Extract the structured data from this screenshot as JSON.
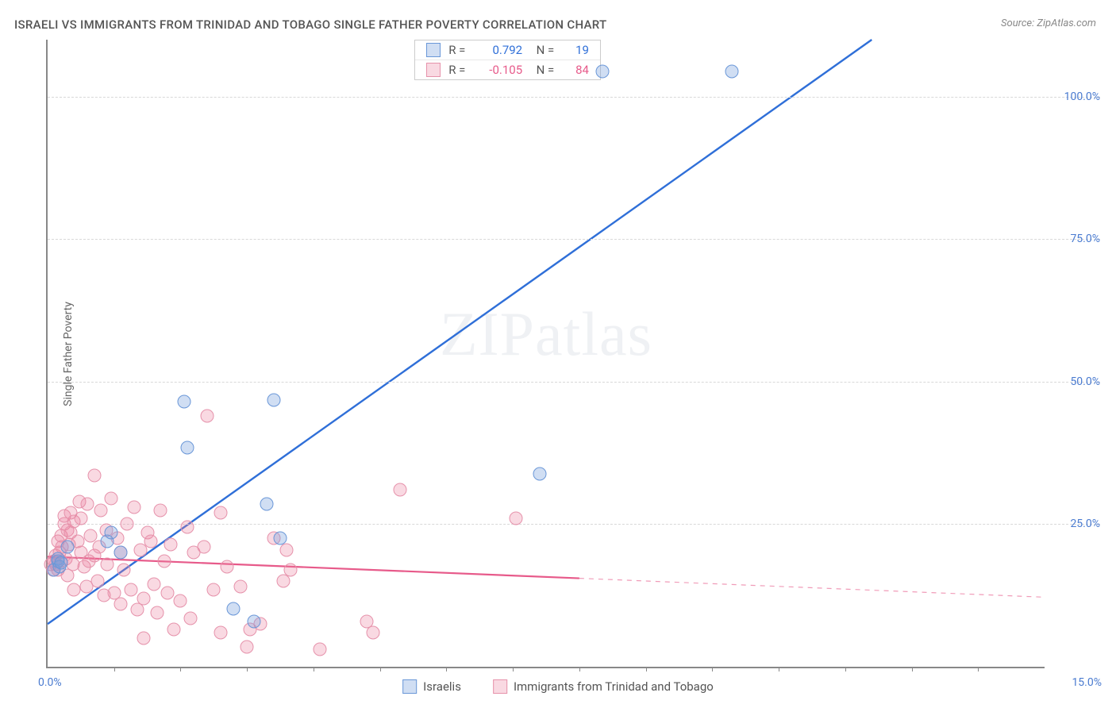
{
  "title": "ISRAELI VS IMMIGRANTS FROM TRINIDAD AND TOBAGO SINGLE FATHER POVERTY CORRELATION CHART",
  "source": "Source: ZipAtlas.com",
  "y_axis_label": "Single Father Poverty",
  "watermark": "ZIPatlas",
  "x_origin_label": "0.0%",
  "x_max_label": "15.0%",
  "xlim": [
    0.0,
    15.0
  ],
  "ylim": [
    0.0,
    110.0
  ],
  "y_ticks": [
    25.0,
    50.0,
    75.0,
    100.0
  ],
  "y_tick_labels": [
    "25.0%",
    "50.0%",
    "75.0%",
    "100.0%"
  ],
  "x_tick_positions": [
    1.0,
    2.0,
    3.0,
    4.0,
    5.0,
    6.0,
    7.0,
    8.0,
    9.0,
    10.0,
    11.0,
    12.0,
    13.0,
    14.0
  ],
  "grid_color": "#d8d8d8",
  "background_color": "#ffffff",
  "axis_color": "#888888",
  "tick_label_color": "#4a7bd0",
  "series": [
    {
      "key": "israelis",
      "label": "Israelis",
      "color_fill": "rgba(120,160,220,0.35)",
      "color_stroke": "#6a97d8",
      "line_color": "#2f6fd8",
      "line_width": 2.4,
      "marker_radius": 8.5,
      "R": "0.792",
      "N": "19",
      "stat_color": "#2f6fd8",
      "trend": {
        "x1": 0.0,
        "y1": 7.5,
        "x2": 12.4,
        "y2": 110.0,
        "dash_from_x": 12.4
      },
      "points": [
        [
          0.1,
          17.0
        ],
        [
          0.15,
          18.5
        ],
        [
          0.15,
          19.0
        ],
        [
          0.18,
          17.5
        ],
        [
          0.2,
          18.2
        ],
        [
          0.3,
          21.0
        ],
        [
          0.9,
          22.0
        ],
        [
          0.95,
          23.5
        ],
        [
          1.1,
          20.0
        ],
        [
          2.05,
          46.5
        ],
        [
          2.1,
          38.5
        ],
        [
          2.8,
          10.2
        ],
        [
          3.1,
          8.0
        ],
        [
          3.3,
          28.5
        ],
        [
          3.4,
          46.8
        ],
        [
          3.5,
          22.5
        ],
        [
          7.4,
          33.8
        ],
        [
          8.35,
          104.5
        ],
        [
          10.3,
          104.5
        ]
      ]
    },
    {
      "key": "trinidad",
      "label": "Immigrants from Trinidad and Tobago",
      "color_fill": "rgba(235,130,160,0.30)",
      "color_stroke": "#e692ab",
      "line_color": "#e75a8a",
      "line_width": 2.2,
      "marker_radius": 8.5,
      "R": "-0.105",
      "N": "84",
      "stat_color": "#e75a8a",
      "trend": {
        "x1": 0.0,
        "y1": 19.3,
        "x2": 15.0,
        "y2": 12.2,
        "dash_from_x": 8.0
      },
      "points": [
        [
          0.05,
          18.0
        ],
        [
          0.08,
          17.0
        ],
        [
          0.1,
          18.5
        ],
        [
          0.12,
          18.0
        ],
        [
          0.12,
          19.5
        ],
        [
          0.15,
          22.0
        ],
        [
          0.15,
          17.0
        ],
        [
          0.18,
          20.0
        ],
        [
          0.2,
          23.0
        ],
        [
          0.2,
          18.5
        ],
        [
          0.22,
          21.0
        ],
        [
          0.25,
          25.0
        ],
        [
          0.25,
          26.5
        ],
        [
          0.28,
          19.0
        ],
        [
          0.3,
          24.0
        ],
        [
          0.3,
          16.0
        ],
        [
          0.32,
          21.5
        ],
        [
          0.35,
          23.5
        ],
        [
          0.35,
          27.0
        ],
        [
          0.38,
          18.0
        ],
        [
          0.4,
          25.5
        ],
        [
          0.4,
          13.5
        ],
        [
          0.45,
          22.0
        ],
        [
          0.48,
          29.0
        ],
        [
          0.5,
          20.0
        ],
        [
          0.5,
          26.0
        ],
        [
          0.55,
          17.5
        ],
        [
          0.58,
          14.0
        ],
        [
          0.6,
          28.5
        ],
        [
          0.62,
          18.5
        ],
        [
          0.65,
          23.0
        ],
        [
          0.7,
          19.5
        ],
        [
          0.7,
          33.5
        ],
        [
          0.75,
          15.0
        ],
        [
          0.78,
          21.0
        ],
        [
          0.8,
          27.5
        ],
        [
          0.85,
          12.5
        ],
        [
          0.88,
          24.0
        ],
        [
          0.9,
          18.0
        ],
        [
          0.95,
          29.5
        ],
        [
          1.0,
          13.0
        ],
        [
          1.05,
          22.5
        ],
        [
          1.1,
          20.0
        ],
        [
          1.1,
          11.0
        ],
        [
          1.15,
          17.0
        ],
        [
          1.2,
          25.0
        ],
        [
          1.25,
          13.5
        ],
        [
          1.3,
          28.0
        ],
        [
          1.35,
          10.0
        ],
        [
          1.4,
          20.5
        ],
        [
          1.45,
          5.0
        ],
        [
          1.45,
          12.0
        ],
        [
          1.5,
          23.5
        ],
        [
          1.55,
          22.0
        ],
        [
          1.6,
          14.5
        ],
        [
          1.65,
          9.5
        ],
        [
          1.7,
          27.5
        ],
        [
          1.75,
          18.5
        ],
        [
          1.8,
          13.0
        ],
        [
          1.85,
          21.5
        ],
        [
          1.9,
          6.5
        ],
        [
          2.0,
          11.5
        ],
        [
          2.1,
          24.5
        ],
        [
          2.15,
          8.5
        ],
        [
          2.2,
          20.0
        ],
        [
          2.35,
          21.0
        ],
        [
          2.4,
          44.0
        ],
        [
          2.5,
          13.5
        ],
        [
          2.6,
          6.0
        ],
        [
          2.6,
          27.0
        ],
        [
          2.7,
          17.5
        ],
        [
          2.9,
          14.0
        ],
        [
          3.0,
          3.5
        ],
        [
          3.05,
          6.5
        ],
        [
          3.2,
          7.5
        ],
        [
          3.4,
          22.5
        ],
        [
          3.55,
          15.0
        ],
        [
          3.6,
          20.5
        ],
        [
          3.65,
          17.0
        ],
        [
          4.1,
          3.0
        ],
        [
          4.8,
          8.0
        ],
        [
          4.9,
          6.0
        ],
        [
          5.3,
          31.0
        ],
        [
          7.05,
          26.0
        ]
      ]
    }
  ],
  "stats_box": {
    "rows": [
      {
        "series_key": "israelis"
      },
      {
        "series_key": "trinidad"
      }
    ]
  },
  "bottom_legend": [
    {
      "series_key": "israelis"
    },
    {
      "series_key": "trinidad"
    }
  ]
}
